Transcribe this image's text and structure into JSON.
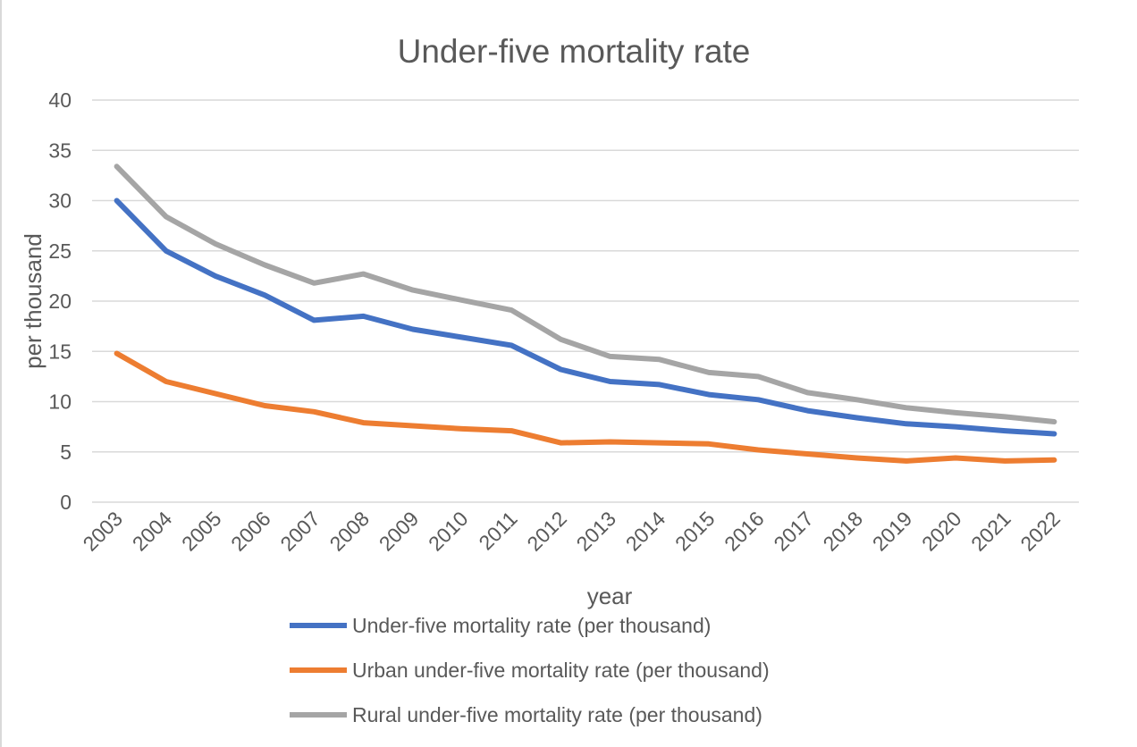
{
  "chart_data": {
    "type": "line",
    "title": "Under-five mortality rate",
    "xlabel": "year",
    "ylabel": "per thousand",
    "ylim": [
      0,
      40
    ],
    "yticks": [
      0,
      5,
      10,
      15,
      20,
      25,
      30,
      35,
      40
    ],
    "grid": true,
    "legend_position": "bottom",
    "categories": [
      "2003",
      "2004",
      "2005",
      "2006",
      "2007",
      "2008",
      "2009",
      "2010",
      "2011",
      "2012",
      "2013",
      "2014",
      "2015",
      "2016",
      "2017",
      "2018",
      "2019",
      "2020",
      "2021",
      "2022"
    ],
    "series": [
      {
        "name": "Under-five mortality rate (per thousand)",
        "color": "#4472c4",
        "values": [
          30.0,
          25.0,
          22.5,
          20.6,
          18.1,
          18.5,
          17.2,
          16.4,
          15.6,
          13.2,
          12.0,
          11.7,
          10.7,
          10.2,
          9.1,
          8.4,
          7.8,
          7.5,
          7.1,
          6.8
        ]
      },
      {
        "name": "Urban under-five mortality rate (per thousand)",
        "color": "#ed7d31",
        "values": [
          14.8,
          12.0,
          10.8,
          9.6,
          9.0,
          7.9,
          7.6,
          7.3,
          7.1,
          5.9,
          6.0,
          5.9,
          5.8,
          5.2,
          4.8,
          4.4,
          4.1,
          4.4,
          4.1,
          4.2
        ]
      },
      {
        "name": "Rural under-five mortality rate (per thousand)",
        "color": "#a5a5a5",
        "values": [
          33.4,
          28.4,
          25.7,
          23.6,
          21.8,
          22.7,
          21.1,
          20.1,
          19.1,
          16.2,
          14.5,
          14.2,
          12.9,
          12.5,
          10.9,
          10.2,
          9.4,
          8.9,
          8.5,
          8.0
        ]
      }
    ]
  }
}
